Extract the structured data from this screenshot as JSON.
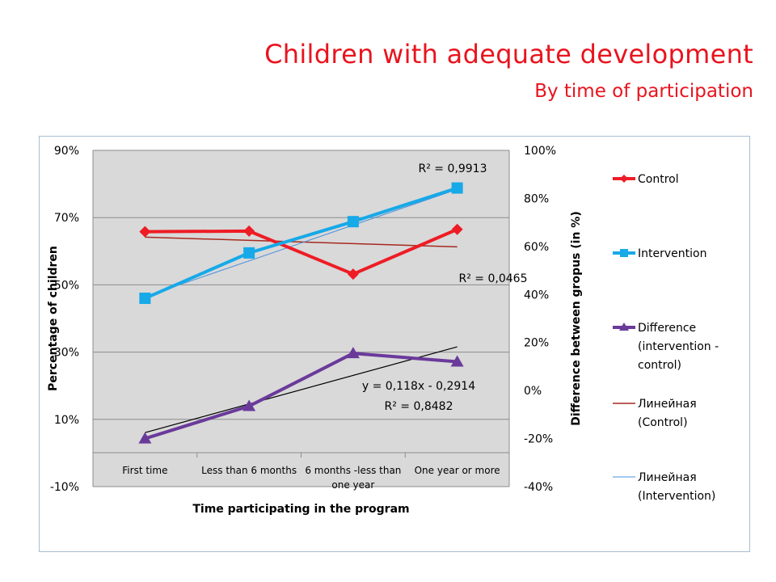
{
  "header": {
    "title": "Children with adequate development",
    "subtitle": "By time of participation"
  },
  "chart_data": {
    "type": "line",
    "categories": [
      "First time",
      "Less than 6 months",
      "6 months -less than one year",
      "One year or more"
    ],
    "category_labels": [
      {
        "lines": [
          "First time"
        ]
      },
      {
        "lines": [
          "Less than 6 months"
        ]
      },
      {
        "lines": [
          "6 months -less than",
          "one year"
        ]
      },
      {
        "lines": [
          "One year or more"
        ]
      }
    ],
    "xlabel": "Time participating in the program",
    "ylabel_left": "Percentage of children",
    "ylabel_right": "Difference between gropus (in %)",
    "ylim_left": [
      -10,
      90
    ],
    "ylim_right": [
      -40,
      100
    ],
    "left_ticks": [
      "90%",
      "70%",
      "50%",
      "30%",
      "10%",
      "-10%"
    ],
    "right_ticks": [
      "100%",
      "80%",
      "60%",
      "40%",
      "20%",
      "0%",
      "-20%",
      "-40%"
    ],
    "grid": true,
    "legend_position": "right",
    "series": [
      {
        "name": "Control",
        "axis": "left",
        "values": [
          65.8,
          66.0,
          53.2,
          66.5
        ],
        "color": "#ee1c25",
        "marker": "diamond"
      },
      {
        "name": "Intervention",
        "axis": "left",
        "values": [
          46.0,
          59.5,
          68.8,
          78.8
        ],
        "color": "#17a9e8",
        "marker": "square"
      },
      {
        "name": "Difference (intervention - control)",
        "legend_lines": [
          "Difference",
          "(intervention -",
          "control)"
        ],
        "axis": "right",
        "values": [
          -20,
          -6.5,
          15.5,
          12
        ],
        "color": "#6a3a9b",
        "marker": "triangle"
      }
    ],
    "trendlines": [
      {
        "name": "Линейная (Control)",
        "legend_lines": [
          "Линейная",
          "(Control)"
        ],
        "axis": "left",
        "start": 64.2,
        "end": 61.3,
        "color": "#a52a20"
      },
      {
        "name": "Линейная (Intervention)",
        "legend_lines": [
          "Линейная",
          "(Intervention)"
        ],
        "axis": "left",
        "start": 46.5,
        "end": 78.4,
        "color": "#4a90d9"
      },
      {
        "name": "difference-trend",
        "axis": "right",
        "start": -17.5,
        "end": 18.2,
        "color": "#000000"
      }
    ],
    "annotations": [
      {
        "id": "r2-intervention",
        "text": "R² = 0,9913"
      },
      {
        "id": "r2-control",
        "text": "R² = 0,0465"
      },
      {
        "id": "eq-difference",
        "text": "y = 0,118x - 0,2914"
      },
      {
        "id": "r2-difference",
        "text": "R² = 0,8482"
      }
    ]
  }
}
